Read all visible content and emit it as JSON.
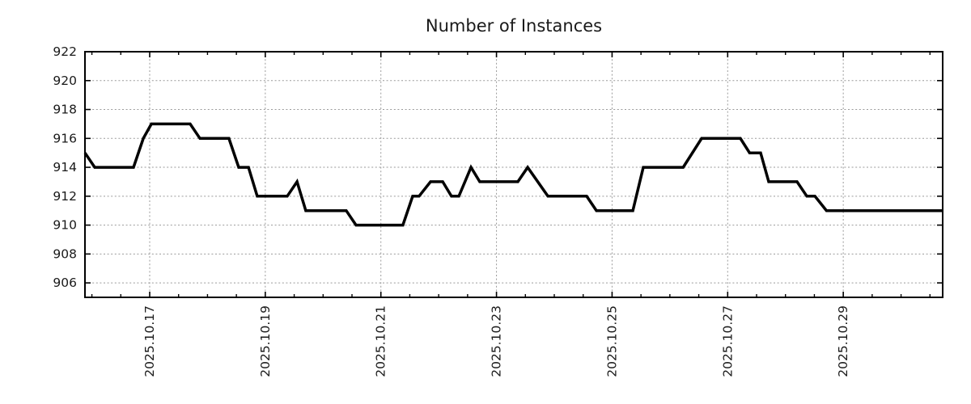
{
  "page": {
    "background_color": "#ffffff"
  },
  "chart_data": {
    "type": "line",
    "title": "Number of Instances",
    "xlabel": "",
    "ylabel": "",
    "legend": {
      "show": false
    },
    "grid": {
      "show": true,
      "style": "dotted",
      "color": "#9a9a9a"
    },
    "colors": {
      "line": "#000000",
      "axis": "#000000",
      "text": "#1a1a1a",
      "background": "#ffffff"
    },
    "x_axis": {
      "unit": "date (day of October 2025)",
      "range": [
        15.88,
        30.72
      ],
      "minor_tick_interval": 0.5,
      "major_ticks": [
        {
          "value": 17,
          "label": "2025.10.17"
        },
        {
          "value": 19,
          "label": "2025.10.19"
        },
        {
          "value": 21,
          "label": "2025.10.21"
        },
        {
          "value": 23,
          "label": "2025.10.23"
        },
        {
          "value": 25,
          "label": "2025.10.25"
        },
        {
          "value": 27,
          "label": "2025.10.27"
        },
        {
          "value": 29,
          "label": "2025.10.29"
        }
      ]
    },
    "y_axis": {
      "range": [
        905,
        922
      ],
      "major_ticks": [
        {
          "value": 906,
          "label": "906"
        },
        {
          "value": 908,
          "label": "908"
        },
        {
          "value": 910,
          "label": "910"
        },
        {
          "value": 912,
          "label": "912"
        },
        {
          "value": 914,
          "label": "914"
        },
        {
          "value": 916,
          "label": "916"
        },
        {
          "value": 918,
          "label": "918"
        },
        {
          "value": 920,
          "label": "920"
        },
        {
          "value": 922,
          "label": "922"
        }
      ]
    },
    "series": [
      {
        "name": "Number of Instances",
        "color": "#000000",
        "line_width": 3.5,
        "points": [
          [
            15.88,
            915
          ],
          [
            16.05,
            914
          ],
          [
            16.72,
            914
          ],
          [
            16.89,
            916
          ],
          [
            17.03,
            917
          ],
          [
            17.7,
            917
          ],
          [
            17.87,
            916
          ],
          [
            18.37,
            916
          ],
          [
            18.54,
            914
          ],
          [
            18.71,
            914
          ],
          [
            18.86,
            912
          ],
          [
            19.38,
            912
          ],
          [
            19.55,
            913
          ],
          [
            19.7,
            911
          ],
          [
            20.4,
            911
          ],
          [
            20.57,
            910
          ],
          [
            21.38,
            910
          ],
          [
            21.55,
            912
          ],
          [
            21.66,
            912
          ],
          [
            21.86,
            913
          ],
          [
            22.07,
            913
          ],
          [
            22.22,
            912
          ],
          [
            22.35,
            912
          ],
          [
            22.56,
            914
          ],
          [
            22.71,
            913
          ],
          [
            23.37,
            913
          ],
          [
            23.54,
            914
          ],
          [
            23.89,
            912
          ],
          [
            24.56,
            912
          ],
          [
            24.73,
            911
          ],
          [
            25.36,
            911
          ],
          [
            25.54,
            914
          ],
          [
            26.23,
            914
          ],
          [
            26.55,
            916
          ],
          [
            27.22,
            916
          ],
          [
            27.38,
            915
          ],
          [
            27.57,
            915
          ],
          [
            27.71,
            913
          ],
          [
            28.2,
            913
          ],
          [
            28.37,
            912
          ],
          [
            28.51,
            912
          ],
          [
            28.71,
            911
          ],
          [
            30.72,
            911
          ]
        ]
      }
    ]
  }
}
